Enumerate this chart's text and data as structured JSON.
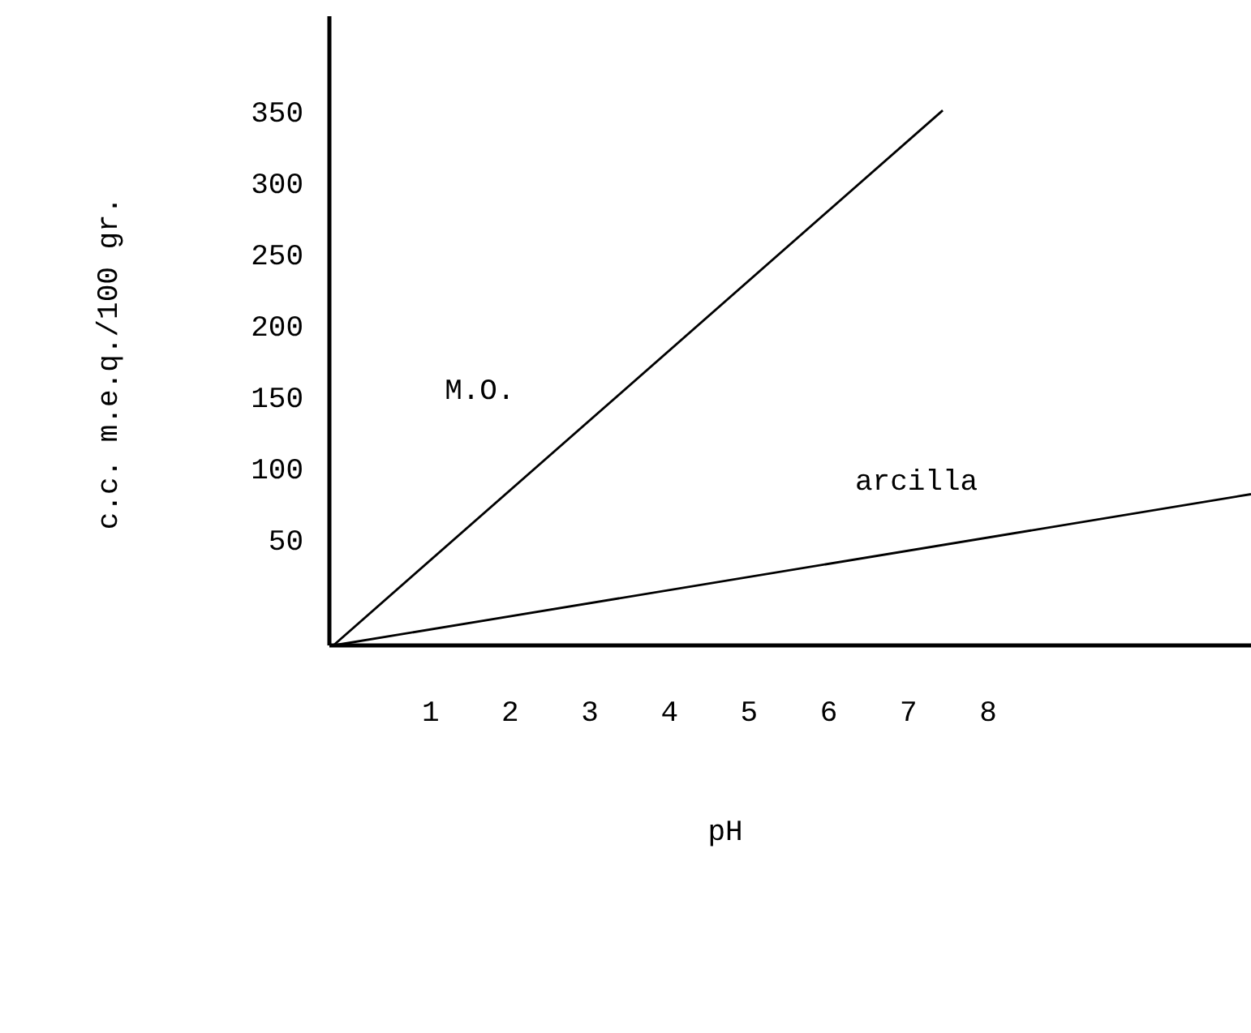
{
  "chart_data": {
    "type": "line",
    "xlabel": "pH",
    "ylabel": "c.c. m.e.q./100 gr.",
    "xlim": [
      -0.27,
      11.3
    ],
    "ylim": [
      -24,
      417
    ],
    "xticks": [
      1,
      2,
      3,
      4,
      5,
      6,
      7,
      8
    ],
    "yticks": [
      50,
      100,
      150,
      200,
      250,
      300,
      350
    ],
    "grid": false,
    "marker": "none",
    "line_style": "solid",
    "series": [
      {
        "name": "M.O.",
        "color": "#000000",
        "x": [
          -0.22,
          7.43
        ],
        "values": [
          -24,
          351
        ]
      },
      {
        "name": "arcilla",
        "color": "#000000",
        "x": [
          -0.22,
          11.3
        ],
        "values": [
          -24,
          82
        ]
      }
    ]
  }
}
